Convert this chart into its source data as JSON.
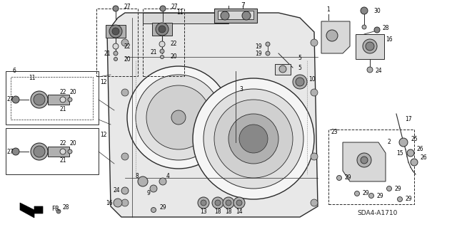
{
  "figsize": [
    6.4,
    3.19
  ],
  "dpi": 100,
  "background_color": "#ffffff",
  "line_color": "#2a2a2a",
  "fill_light": "#d8d8d8",
  "fill_mid": "#b0b0b0",
  "fill_dark": "#888888",
  "text_color": "#000000",
  "text_size": 6.0,
  "diagram_code": "SDA4-A1710",
  "fr_arrow_color": "#000000"
}
